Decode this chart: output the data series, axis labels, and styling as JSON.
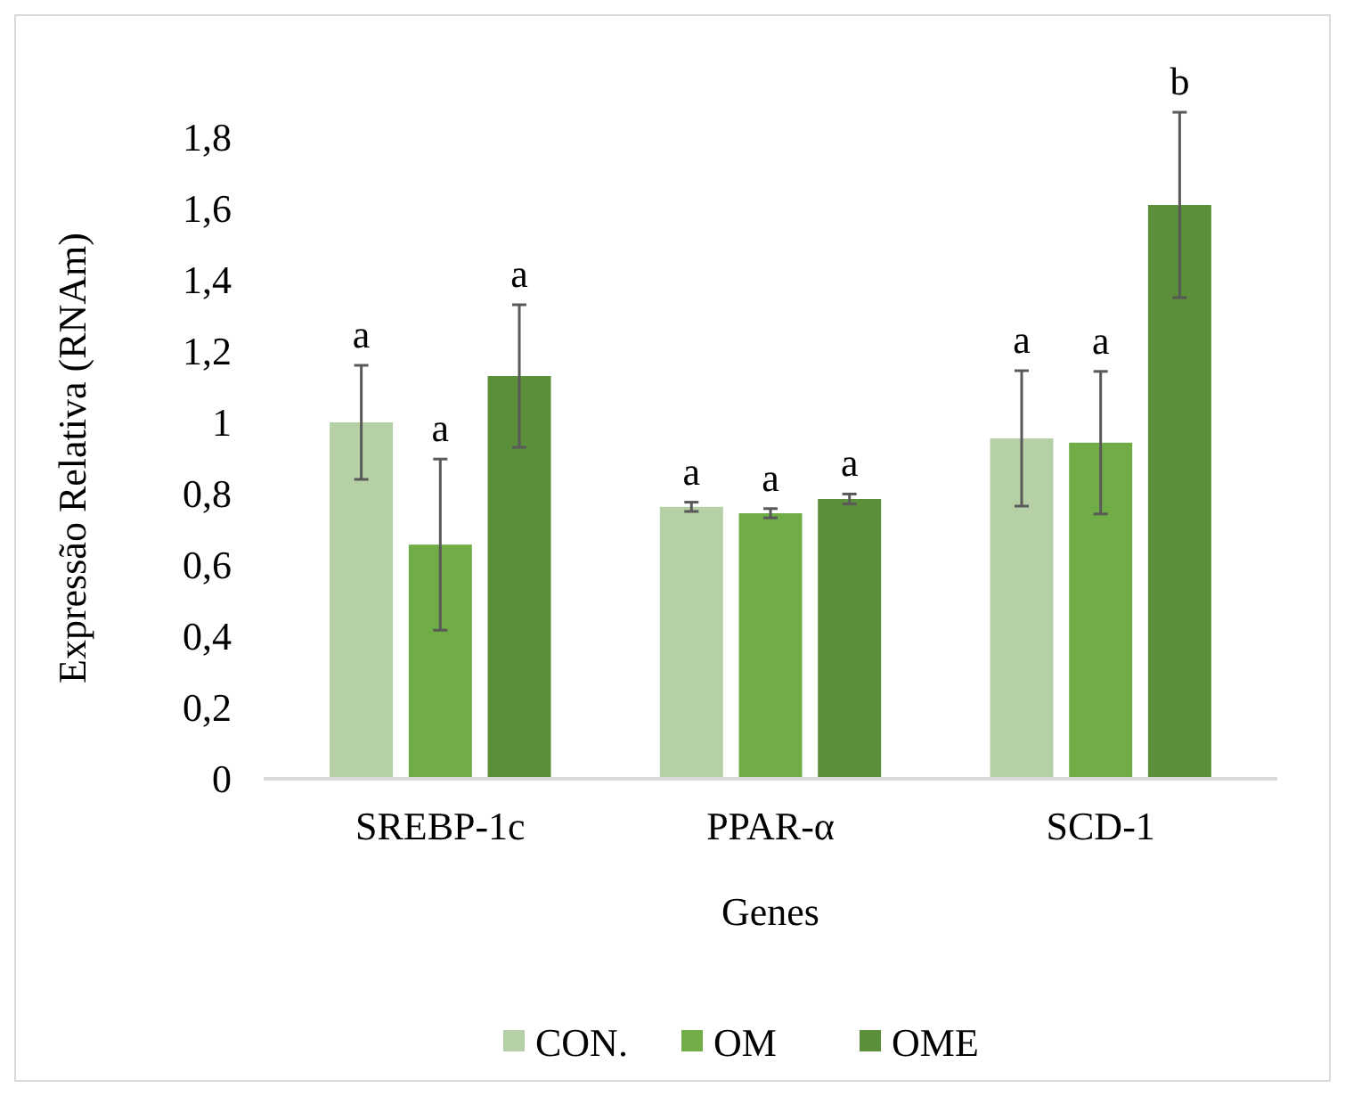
{
  "chart_data": {
    "type": "bar",
    "xlabel": "Genes",
    "ylabel": "Expressão Relativa (RNAm)",
    "categories": [
      "SREBP-1c",
      "PPAR-α",
      "SCD-1"
    ],
    "series": [
      {
        "name": "CON.",
        "color": "#b5cfa7",
        "values": [
          1.0,
          0.763,
          0.955
        ],
        "errors": [
          0.16,
          0.013,
          0.19
        ],
        "value_labels": [
          "a",
          "a",
          "a"
        ]
      },
      {
        "name": "OM",
        "color": "#70ad47",
        "values": [
          0.657,
          0.745,
          0.943
        ],
        "errors": [
          0.24,
          0.013,
          0.2
        ],
        "value_labels": [
          "a",
          "a",
          "a"
        ]
      },
      {
        "name": "OME",
        "color": "#5b8f3a",
        "values": [
          1.13,
          0.785,
          1.61
        ],
        "errors": [
          0.2,
          0.014,
          0.26
        ],
        "value_labels": [
          "a",
          "a",
          "b"
        ]
      }
    ],
    "ylim": [
      0,
      1.8
    ],
    "yticks": [
      {
        "value": 0,
        "label": "0"
      },
      {
        "value": 0.2,
        "label": "0,2"
      },
      {
        "value": 0.4,
        "label": "0,4"
      },
      {
        "value": 0.6,
        "label": "0,6"
      },
      {
        "value": 0.8,
        "label": "0,8"
      },
      {
        "value": 1,
        "label": "1"
      },
      {
        "value": 1.2,
        "label": "1,2"
      },
      {
        "value": 1.4,
        "label": "1,4"
      },
      {
        "value": 1.6,
        "label": "1,6"
      },
      {
        "value": 1.8,
        "label": "1,8"
      }
    ],
    "legend": "bottom",
    "grid": false
  }
}
